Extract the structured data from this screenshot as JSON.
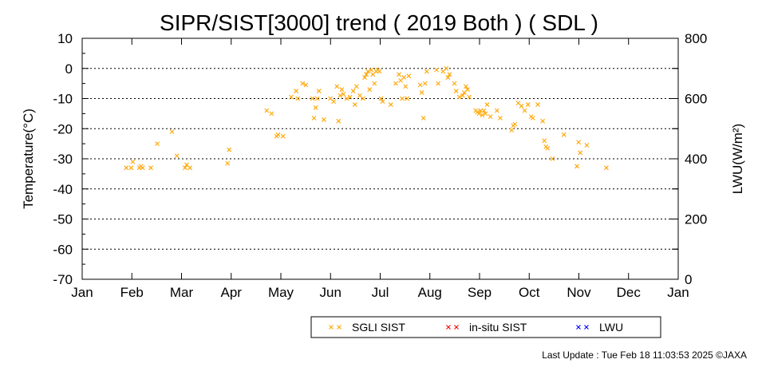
{
  "chart_data": {
    "type": "scatter",
    "title": "SIPR/SIST[3000] trend ( 2019 Both ) ( SDL )",
    "ylabel": "Temperature(°C)",
    "y2label": "LWU(W/m²)",
    "ylim": [
      -70,
      10
    ],
    "y2lim": [
      0,
      800
    ],
    "yticks": [
      "10",
      "0",
      "-10",
      "-20",
      "-30",
      "-40",
      "-50",
      "-60",
      "-70"
    ],
    "y2ticks": [
      "800",
      "600",
      "400",
      "200",
      "0"
    ],
    "months": [
      "Jan",
      "Feb",
      "Mar",
      "Apr",
      "May",
      "Jun",
      "Jul",
      "Aug",
      "Sep",
      "Oct",
      "Nov",
      "Dec",
      "Jan"
    ],
    "grid": "dotted horizontal",
    "legend": "bottom",
    "series": [
      {
        "name": "SGLI SIST",
        "color": "#ffa500",
        "marker": "x",
        "points": [
          {
            "x": "2019-01-28",
            "y": -33
          },
          {
            "x": "2019-01-31",
            "y": -33
          },
          {
            "x": "2019-02-01",
            "y": -31
          },
          {
            "x": "2019-02-05",
            "y": -33
          },
          {
            "x": "2019-02-06",
            "y": -32.5
          },
          {
            "x": "2019-02-07",
            "y": -33
          },
          {
            "x": "2019-02-12",
            "y": -33
          },
          {
            "x": "2019-02-16",
            "y": -25
          },
          {
            "x": "2019-02-25",
            "y": -21
          },
          {
            "x": "2019-02-28",
            "y": -29
          },
          {
            "x": "2019-03-05",
            "y": -33
          },
          {
            "x": "2019-03-06",
            "y": -32
          },
          {
            "x": "2019-03-08",
            "y": -33
          },
          {
            "x": "2019-03-31",
            "y": -31.5
          },
          {
            "x": "2019-04-01",
            "y": -27
          },
          {
            "x": "2019-04-24",
            "y": -14
          },
          {
            "x": "2019-04-27",
            "y": -15
          },
          {
            "x": "2019-04-30",
            "y": -22.5
          },
          {
            "x": "2019-05-01",
            "y": -22
          },
          {
            "x": "2019-05-04",
            "y": -22.5
          },
          {
            "x": "2019-05-09",
            "y": -9.5
          },
          {
            "x": "2019-05-12",
            "y": -7.5
          },
          {
            "x": "2019-05-13",
            "y": -10
          },
          {
            "x": "2019-05-16",
            "y": -5
          },
          {
            "x": "2019-05-18",
            "y": -5.5
          },
          {
            "x": "2019-05-22",
            "y": -10
          },
          {
            "x": "2019-05-23",
            "y": -16.5
          },
          {
            "x": "2019-05-24",
            "y": -13
          },
          {
            "x": "2019-05-25",
            "y": -10
          },
          {
            "x": "2019-05-26",
            "y": -7.5
          },
          {
            "x": "2019-05-29",
            "y": -17
          },
          {
            "x": "2019-06-02",
            "y": -10
          },
          {
            "x": "2019-06-04",
            "y": -11
          },
          {
            "x": "2019-06-06",
            "y": -6
          },
          {
            "x": "2019-06-07",
            "y": -17.5
          },
          {
            "x": "2019-06-08",
            "y": -9
          },
          {
            "x": "2019-06-09",
            "y": -7
          },
          {
            "x": "2019-06-10",
            "y": -8.5
          },
          {
            "x": "2019-06-12",
            "y": -10
          },
          {
            "x": "2019-06-14",
            "y": -9.5
          },
          {
            "x": "2019-06-16",
            "y": -7.5
          },
          {
            "x": "2019-06-17",
            "y": -12
          },
          {
            "x": "2019-06-18",
            "y": -6
          },
          {
            "x": "2019-06-20",
            "y": -9
          },
          {
            "x": "2019-06-22",
            "y": -10
          },
          {
            "x": "2019-06-23",
            "y": -3
          },
          {
            "x": "2019-06-24",
            "y": -2
          },
          {
            "x": "2019-06-25",
            "y": -1
          },
          {
            "x": "2019-06-26",
            "y": -7
          },
          {
            "x": "2019-06-27",
            "y": -0.5
          },
          {
            "x": "2019-06-28",
            "y": -2
          },
          {
            "x": "2019-06-29",
            "y": -5
          },
          {
            "x": "2019-06-30",
            "y": -1
          },
          {
            "x": "2019-07-01",
            "y": -0.5
          },
          {
            "x": "2019-07-02",
            "y": -1
          },
          {
            "x": "2019-07-03",
            "y": -10
          },
          {
            "x": "2019-07-04",
            "y": -11
          },
          {
            "x": "2019-07-09",
            "y": -12
          },
          {
            "x": "2019-07-12",
            "y": -5
          },
          {
            "x": "2019-07-14",
            "y": -2
          },
          {
            "x": "2019-07-15",
            "y": -4
          },
          {
            "x": "2019-07-16",
            "y": -10
          },
          {
            "x": "2019-07-17",
            "y": -3
          },
          {
            "x": "2019-07-18",
            "y": -6
          },
          {
            "x": "2019-07-19",
            "y": -10
          },
          {
            "x": "2019-07-20",
            "y": -2.5
          },
          {
            "x": "2019-07-27",
            "y": -5.5
          },
          {
            "x": "2019-07-28",
            "y": -8
          },
          {
            "x": "2019-07-29",
            "y": -16.5
          },
          {
            "x": "2019-07-30",
            "y": -5
          },
          {
            "x": "2019-07-31",
            "y": -1
          },
          {
            "x": "2019-08-06",
            "y": -0.5
          },
          {
            "x": "2019-08-07",
            "y": -5
          },
          {
            "x": "2019-08-10",
            "y": -1
          },
          {
            "x": "2019-08-12",
            "y": 0
          },
          {
            "x": "2019-08-13",
            "y": -3
          },
          {
            "x": "2019-08-14",
            "y": -2
          },
          {
            "x": "2019-08-17",
            "y": -5
          },
          {
            "x": "2019-08-18",
            "y": -7.5
          },
          {
            "x": "2019-08-20",
            "y": -9.5
          },
          {
            "x": "2019-08-22",
            "y": -9
          },
          {
            "x": "2019-08-23",
            "y": -8
          },
          {
            "x": "2019-08-24",
            "y": -6
          },
          {
            "x": "2019-08-25",
            "y": -7
          },
          {
            "x": "2019-08-26",
            "y": -9.5
          },
          {
            "x": "2019-08-30",
            "y": -14
          },
          {
            "x": "2019-08-31",
            "y": -14.5
          },
          {
            "x": "2019-09-01",
            "y": -15
          },
          {
            "x": "2019-09-02",
            "y": -14
          },
          {
            "x": "2019-09-03",
            "y": -15.5
          },
          {
            "x": "2019-09-04",
            "y": -14
          },
          {
            "x": "2019-09-05",
            "y": -15
          },
          {
            "x": "2019-09-06",
            "y": -12
          },
          {
            "x": "2019-09-08",
            "y": -16
          },
          {
            "x": "2019-09-12",
            "y": -14
          },
          {
            "x": "2019-09-14",
            "y": -16.5
          },
          {
            "x": "2019-09-21",
            "y": -20.5
          },
          {
            "x": "2019-09-22",
            "y": -19
          },
          {
            "x": "2019-09-23",
            "y": -18.5
          },
          {
            "x": "2019-09-25",
            "y": -11.5
          },
          {
            "x": "2019-09-27",
            "y": -12.5
          },
          {
            "x": "2019-09-29",
            "y": -14
          },
          {
            "x": "2019-10-01",
            "y": -12
          },
          {
            "x": "2019-10-03",
            "y": -16
          },
          {
            "x": "2019-10-04",
            "y": -16.5
          },
          {
            "x": "2019-10-07",
            "y": -12
          },
          {
            "x": "2019-10-10",
            "y": -17.5
          },
          {
            "x": "2019-10-11",
            "y": -24
          },
          {
            "x": "2019-10-12",
            "y": -26
          },
          {
            "x": "2019-10-13",
            "y": -26.5
          },
          {
            "x": "2019-10-16",
            "y": -30
          },
          {
            "x": "2019-10-23",
            "y": -22
          },
          {
            "x": "2019-10-31",
            "y": -32.5
          },
          {
            "x": "2019-11-01",
            "y": -24.5
          },
          {
            "x": "2019-11-02",
            "y": -28
          },
          {
            "x": "2019-11-06",
            "y": -25.5
          },
          {
            "x": "2019-11-18",
            "y": -33
          }
        ]
      },
      {
        "name": "in-situ SIST",
        "color": "#ff0000",
        "marker": "x",
        "points": []
      },
      {
        "name": "LWU",
        "color": "#0000ff",
        "marker": "x",
        "points": []
      }
    ]
  },
  "footer": {
    "last_update": "Last Update : Tue Feb 18 11:03:53 2025  ©JAXA"
  }
}
